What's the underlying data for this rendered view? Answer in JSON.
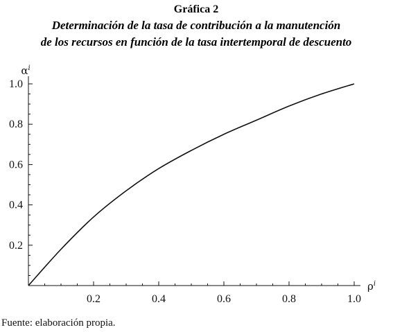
{
  "header": {
    "title": "Gráfica 2",
    "subtitle_line1": "Determinación de la tasa de contribución a la manutención",
    "subtitle_line2": "de los recursos en función de la tasa intertemporal de descuento"
  },
  "chart_data": {
    "type": "line",
    "title": "Gráfica 2",
    "subtitle": "Determinación de la tasa de contribución a la manutención de los recursos en función de la tasa intertemporal de descuento",
    "xlabel": "ρ",
    "xlabel_superscript": "i",
    "ylabel": "α",
    "ylabel_superscript": "i",
    "xlim": [
      0,
      1.0
    ],
    "ylim": [
      0,
      1.0
    ],
    "x_ticks": [
      "0.2",
      "0.4",
      "0.6",
      "0.8",
      "1.0"
    ],
    "y_ticks": [
      "0.2",
      "0.4",
      "0.6",
      "0.8",
      "1.0"
    ],
    "grid": false,
    "legend": "none",
    "line_color": "#111111",
    "series": [
      {
        "x": [
          0,
          0.1,
          0.2,
          0.3,
          0.4,
          0.5,
          0.6,
          0.7,
          0.8,
          0.9,
          1.0
        ],
        "values": [
          0,
          0.18,
          0.34,
          0.47,
          0.58,
          0.67,
          0.75,
          0.82,
          0.89,
          0.95,
          1.0
        ]
      }
    ]
  },
  "footer": {
    "source": "Fuente: elaboración propia."
  }
}
